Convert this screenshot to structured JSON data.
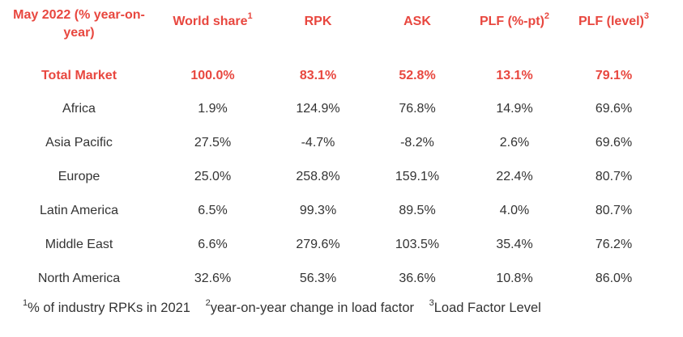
{
  "table": {
    "headers": [
      {
        "label": "May 2022 (% year-on-year)",
        "sup": ""
      },
      {
        "label": "World share",
        "sup": "1"
      },
      {
        "label": "RPK",
        "sup": ""
      },
      {
        "label": "ASK",
        "sup": ""
      },
      {
        "label": "PLF (%-pt)",
        "sup": "2"
      },
      {
        "label": "PLF (level)",
        "sup": "3"
      }
    ],
    "total_row": [
      "Total Market",
      "100.0%",
      "83.1%",
      "52.8%",
      "13.1%",
      "79.1%"
    ],
    "rows": [
      [
        "Africa",
        "1.9%",
        "124.9%",
        "76.8%",
        "14.9%",
        "69.6%"
      ],
      [
        "Asia Pacific",
        "27.5%",
        "-4.7%",
        "-8.2%",
        "2.6%",
        "69.6%"
      ],
      [
        "Europe",
        "25.0%",
        "258.8%",
        "159.1%",
        "22.4%",
        "80.7%"
      ],
      [
        "Latin America",
        "6.5%",
        "99.3%",
        "89.5%",
        "4.0%",
        "80.7%"
      ],
      [
        "Middle East",
        "6.6%",
        "279.6%",
        "103.5%",
        "35.4%",
        "76.2%"
      ],
      [
        "North America",
        "32.6%",
        "56.3%",
        "36.6%",
        "10.8%",
        "86.0%"
      ]
    ]
  },
  "footnotes": [
    {
      "num": "1",
      "text": "% of industry RPKs in 2021"
    },
    {
      "num": "2",
      "text": "year-on-year change in load factor"
    },
    {
      "num": "3",
      "text": "Load Factor Level"
    }
  ],
  "colors": {
    "accent": "#e8473f",
    "text": "#333333"
  }
}
